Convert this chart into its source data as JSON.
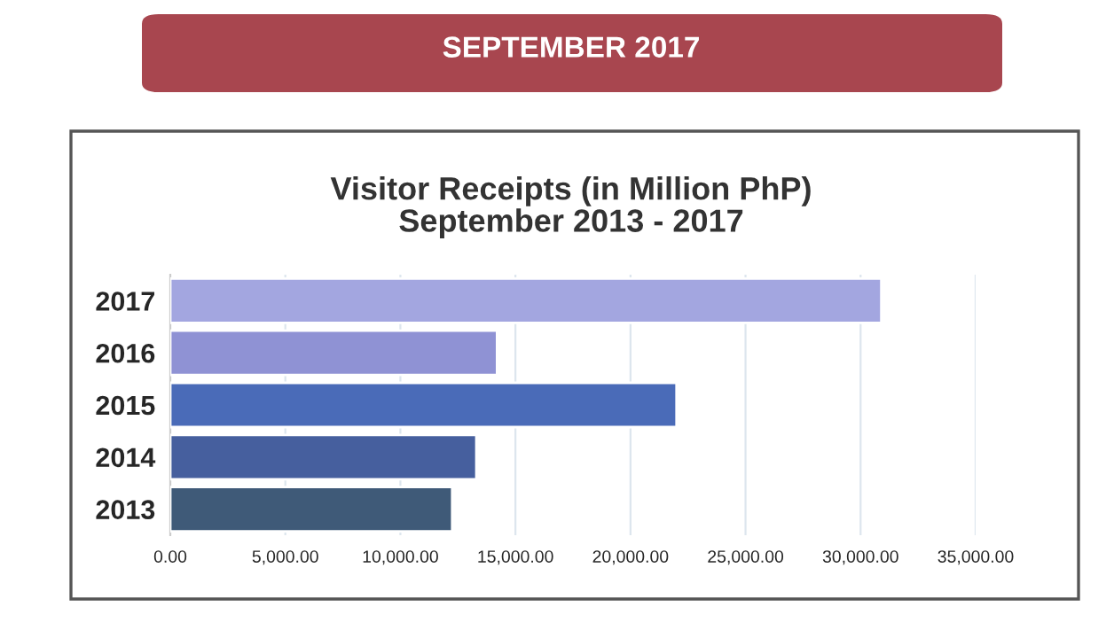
{
  "chart_data": {
    "type": "bar",
    "orientation": "horizontal",
    "title": "SEPTEMBER 2017",
    "subtitle": "Visitor Receipts (in Million PhP)\nSeptember 2013 - 2017",
    "categories": [
      "2017",
      "2016",
      "2015",
      "2014",
      "2013"
    ],
    "values": [
      30900,
      14200,
      22000,
      13300,
      12250
    ],
    "colors": [
      "#a3a6e0",
      "#8f92d4",
      "#4a6bb8",
      "#465f9e",
      "#3f5a78"
    ],
    "xlim": [
      0,
      35000
    ],
    "xticks": [
      {
        "value": 0,
        "label": "0.00"
      },
      {
        "value": 5000,
        "label": "5,000.00"
      },
      {
        "value": 10000,
        "label": "10,000.00"
      },
      {
        "value": 15000,
        "label": "15,000.00"
      },
      {
        "value": 20000,
        "label": "20,000.00"
      },
      {
        "value": 25000,
        "label": "25,000.00"
      },
      {
        "value": 30000,
        "label": "30,000.00"
      },
      {
        "value": 35000,
        "label": "35,000.00"
      }
    ],
    "grid": "x"
  }
}
